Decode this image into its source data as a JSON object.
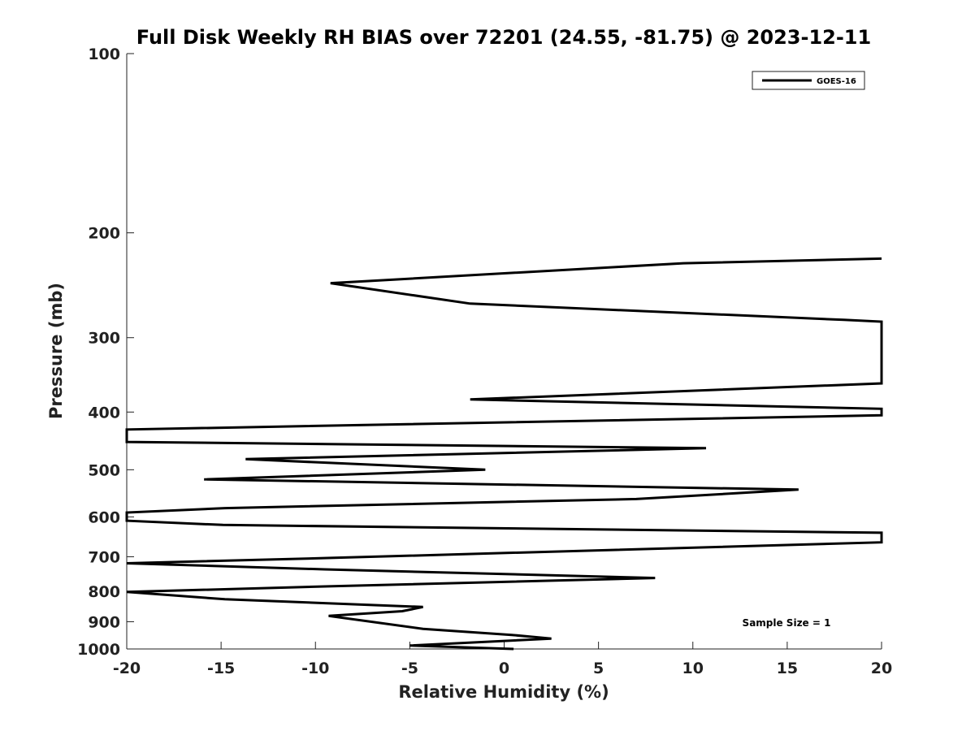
{
  "chart_data": {
    "type": "line",
    "title": "Full Disk Weekly RH BIAS over 72201 (24.55, -81.75) @ 2023-12-11",
    "xlabel": "Relative Humidity (%)",
    "ylabel": "Pressure (mb)",
    "xlim": [
      -20,
      20
    ],
    "ylim": [
      1000,
      100
    ],
    "yscale": "log",
    "xticks": [
      -20,
      -15,
      -10,
      -5,
      0,
      5,
      10,
      15,
      20
    ],
    "yticks": [
      100,
      200,
      300,
      400,
      500,
      600,
      700,
      800,
      900,
      1000
    ],
    "grid": false,
    "legend": {
      "position": "top-right",
      "entries": [
        "GOES-16"
      ]
    },
    "annotation": "Sample Size = 1",
    "series": [
      {
        "name": "GOES-16",
        "color": "#000000",
        "points": [
          {
            "x": 0.5,
            "y": 1000
          },
          {
            "x": -5.0,
            "y": 987
          },
          {
            "x": 2.5,
            "y": 961
          },
          {
            "x": 0.4,
            "y": 947
          },
          {
            "x": -4.3,
            "y": 925
          },
          {
            "x": -9.3,
            "y": 880
          },
          {
            "x": -5.4,
            "y": 864
          },
          {
            "x": -4.3,
            "y": 850
          },
          {
            "x": -14.8,
            "y": 825
          },
          {
            "x": -20.0,
            "y": 802
          },
          {
            "x": -9.3,
            "y": 785
          },
          {
            "x": 8.0,
            "y": 760
          },
          {
            "x": -9.5,
            "y": 735
          },
          {
            "x": -20.0,
            "y": 718
          },
          {
            "x": -9.0,
            "y": 703
          },
          {
            "x": 20.0,
            "y": 662
          },
          {
            "x": 20.0,
            "y": 638
          },
          {
            "x": -14.9,
            "y": 619
          },
          {
            "x": -20.0,
            "y": 609
          },
          {
            "x": -20.0,
            "y": 590
          },
          {
            "x": -14.8,
            "y": 580
          },
          {
            "x": 7.0,
            "y": 560
          },
          {
            "x": 15.6,
            "y": 540
          },
          {
            "x": -15.9,
            "y": 519
          },
          {
            "x": -1.0,
            "y": 500
          },
          {
            "x": -13.7,
            "y": 480
          },
          {
            "x": 10.7,
            "y": 460
          },
          {
            "x": -20.0,
            "y": 449
          },
          {
            "x": -20.0,
            "y": 428
          },
          {
            "x": 20.0,
            "y": 405
          },
          {
            "x": 20.0,
            "y": 395
          },
          {
            "x": -1.8,
            "y": 381
          },
          {
            "x": 20.0,
            "y": 358
          },
          {
            "x": 20.0,
            "y": 282
          },
          {
            "x": 18.0,
            "y": 280
          },
          {
            "x": -1.8,
            "y": 263
          },
          {
            "x": -9.2,
            "y": 243
          },
          {
            "x": 9.5,
            "y": 225
          },
          {
            "x": 20.0,
            "y": 221
          }
        ]
      }
    ]
  }
}
